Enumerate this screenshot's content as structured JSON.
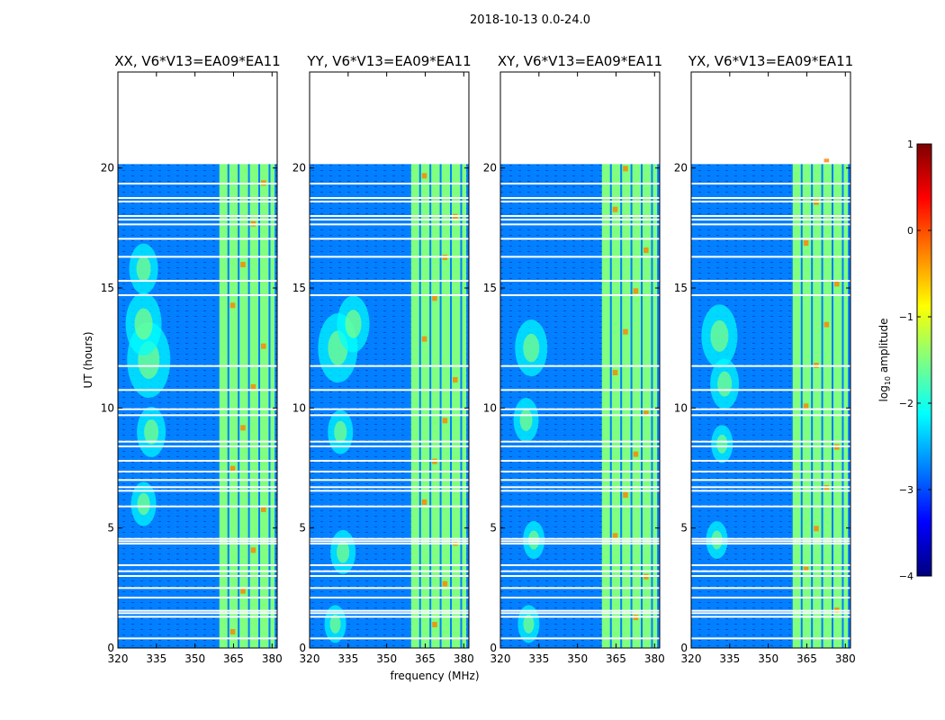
{
  "chart_data": {
    "type": "heatmap",
    "title": "2018-10-13 0.0-24.0",
    "xlabel": "frequency (MHz)",
    "ylabel": "UT (hours)",
    "xlim": [
      320,
      382
    ],
    "ylim": [
      0,
      24
    ],
    "data_ylim": [
      0,
      20.2
    ],
    "xticks": [
      320,
      335,
      350,
      365,
      380
    ],
    "yticks": [
      0,
      5,
      10,
      15,
      20
    ],
    "rfi_band_mhz": [
      359.5,
      381
    ],
    "rfi_channels_mhz": [
      363,
      367,
      371,
      375,
      379
    ],
    "flagged_ut_hours": [
      0.4,
      1.3,
      1.45,
      1.55,
      2.1,
      2.5,
      3.0,
      3.2,
      3.45,
      4.35,
      4.45,
      4.55,
      5.9,
      6.55,
      6.7,
      7.0,
      7.35,
      7.8,
      8.4,
      8.6,
      9.7,
      9.95,
      10.75,
      11.75,
      14.7,
      15.3,
      16.3,
      17.05,
      17.65,
      17.85,
      18.0,
      18.6,
      18.75,
      19.35,
      20.2
    ],
    "panels": [
      {
        "title": "XX, V6*V13=EA09*EA11",
        "bright_spots": [
          [
            332,
            12.0,
            0.6
          ],
          [
            330,
            13.5,
            0.5
          ],
          [
            333,
            9.0,
            0.4
          ],
          [
            330,
            15.8,
            0.4
          ],
          [
            330,
            6.0,
            0.35
          ]
        ]
      },
      {
        "title": "YY, V6*V13=EA09*EA11",
        "bright_spots": [
          [
            331,
            12.5,
            0.55
          ],
          [
            337,
            13.5,
            0.45
          ],
          [
            332,
            9.0,
            0.35
          ],
          [
            333,
            4.0,
            0.35
          ],
          [
            330,
            1.0,
            0.3
          ]
        ]
      },
      {
        "title": "XY, V6*V13=EA09*EA11",
        "bright_spots": [
          [
            332,
            12.5,
            0.45
          ],
          [
            330,
            9.5,
            0.35
          ],
          [
            333,
            4.5,
            0.3
          ],
          [
            331,
            1.0,
            0.3
          ]
        ]
      },
      {
        "title": "YX, V6*V13=EA09*EA11",
        "bright_spots": [
          [
            331,
            13.0,
            0.5
          ],
          [
            333,
            11.0,
            0.4
          ],
          [
            330,
            4.5,
            0.3
          ],
          [
            332,
            8.5,
            0.3
          ]
        ]
      }
    ],
    "colorbar": {
      "label": "log10 amplitude",
      "label_main": "log",
      "label_sub": "10",
      "label_rest": " amplitude",
      "range": [
        -4,
        1
      ],
      "ticks": [
        1,
        0,
        -1,
        -2,
        -3,
        -4
      ],
      "stops": [
        "#00007f",
        "#0000ff",
        "#0080ff",
        "#00ffff",
        "#80ff80",
        "#ffff00",
        "#ff8000",
        "#ff0000",
        "#7f0000"
      ]
    }
  }
}
